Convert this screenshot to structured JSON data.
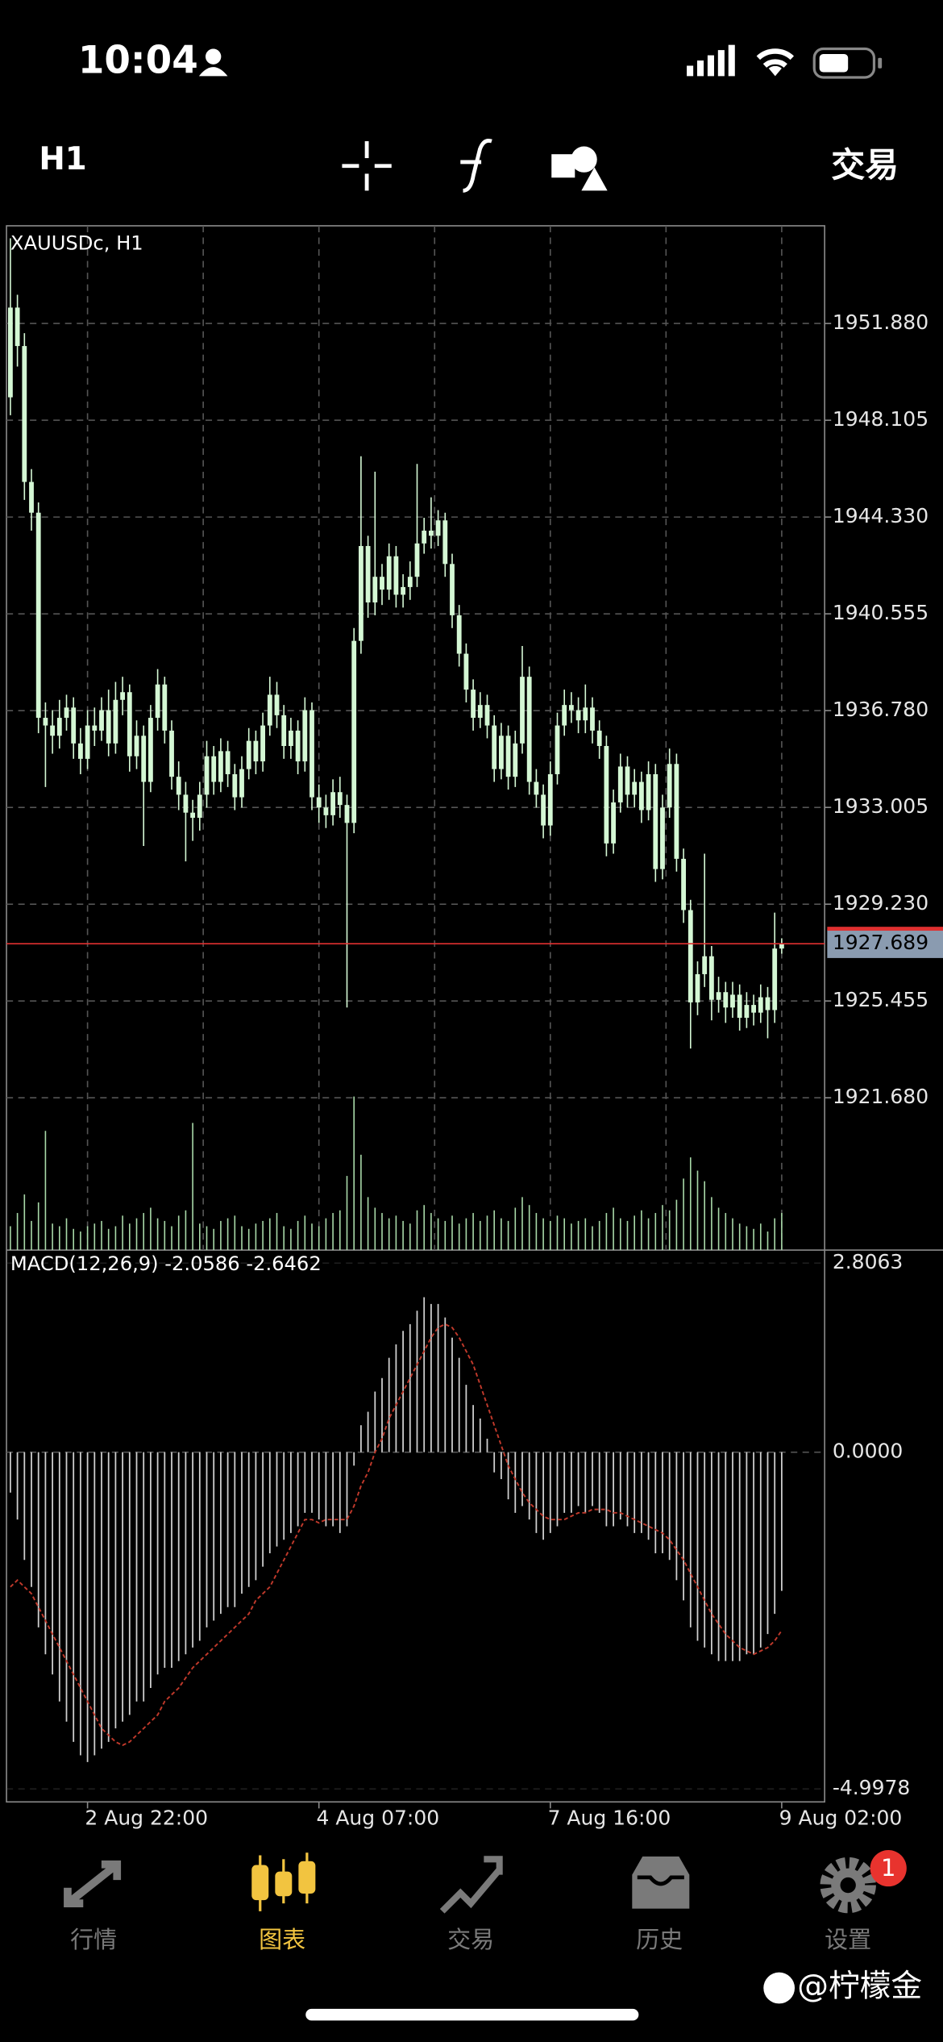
{
  "status_bar": {
    "time": "10:04"
  },
  "toolbar": {
    "timeframe": "H1",
    "trade": "交易"
  },
  "chart_data": {
    "type": "candlestick",
    "symbol_label": "XAUUSDc, H1",
    "color": "#d4f7d4",
    "grid": true,
    "categories": [
      null,
      null,
      null,
      null,
      null,
      null,
      null,
      null,
      null,
      null,
      null,
      "2 Aug 22:00",
      null,
      null,
      null,
      null,
      null,
      null,
      null,
      null,
      null,
      null,
      null,
      null,
      null,
      null,
      null,
      null,
      null,
      null,
      null,
      null,
      null,
      null,
      null,
      null,
      null,
      null,
      null,
      null,
      null,
      null,
      null,
      null,
      "4 Aug 07:00",
      null,
      null,
      null,
      null,
      null,
      null,
      null,
      null,
      null,
      null,
      null,
      null,
      null,
      null,
      null,
      null,
      null,
      null,
      null,
      null,
      null,
      null,
      null,
      null,
      null,
      null,
      null,
      null,
      null,
      null,
      null,
      null,
      "7 Aug 16:00",
      null,
      null,
      null,
      null,
      null,
      null,
      null,
      null,
      null,
      null,
      null,
      null,
      null,
      null,
      null,
      null,
      null,
      null,
      null,
      null,
      null,
      null,
      null,
      null,
      null,
      null,
      null,
      null,
      null,
      null,
      null,
      null,
      "9 Aug 02:00"
    ],
    "candles": [
      [
        1949.0,
        1955.2,
        1948.3,
        1952.5
      ],
      [
        1952.5,
        1953.0,
        1950.2,
        1951.0
      ],
      [
        1951.0,
        1951.5,
        1945.0,
        1945.7
      ],
      [
        1945.7,
        1946.2,
        1943.8,
        1944.5
      ],
      [
        1944.5,
        1944.9,
        1935.9,
        1936.5
      ],
      [
        1936.5,
        1937.1,
        1933.8,
        1936.2
      ],
      [
        1936.2,
        1936.8,
        1935.1,
        1935.8
      ],
      [
        1935.8,
        1937.2,
        1935.3,
        1936.5
      ],
      [
        1936.5,
        1937.4,
        1936.0,
        1936.9
      ],
      [
        1936.9,
        1937.3,
        1934.9,
        1935.5
      ],
      [
        1935.5,
        1936.1,
        1934.3,
        1934.9
      ],
      [
        1934.9,
        1936.8,
        1934.5,
        1936.2
      ],
      [
        1936.2,
        1936.9,
        1935.4,
        1936.0
      ],
      [
        1936.0,
        1937.3,
        1935.6,
        1936.8
      ],
      [
        1936.8,
        1937.6,
        1935.0,
        1935.5
      ],
      [
        1935.5,
        1937.9,
        1935.1,
        1937.2
      ],
      [
        1937.2,
        1938.1,
        1936.6,
        1937.5
      ],
      [
        1937.5,
        1937.8,
        1934.4,
        1935.0
      ],
      [
        1935.0,
        1936.4,
        1934.5,
        1935.8
      ],
      [
        1935.8,
        1936.2,
        1931.5,
        1934.0
      ],
      [
        1934.0,
        1937.0,
        1933.6,
        1936.5
      ],
      [
        1936.5,
        1938.4,
        1936.0,
        1937.8
      ],
      [
        1937.8,
        1938.1,
        1935.5,
        1936.0
      ],
      [
        1936.0,
        1936.4,
        1933.7,
        1934.2
      ],
      [
        1934.2,
        1934.8,
        1932.9,
        1933.5
      ],
      [
        1933.5,
        1934.0,
        1930.9,
        1932.8
      ],
      [
        1932.8,
        1933.3,
        1931.7,
        1932.6
      ],
      [
        1932.6,
        1934.0,
        1932.1,
        1933.5
      ],
      [
        1933.5,
        1935.6,
        1933.0,
        1935.0
      ],
      [
        1935.0,
        1935.4,
        1933.5,
        1934.0
      ],
      [
        1934.0,
        1935.7,
        1933.6,
        1935.2
      ],
      [
        1935.2,
        1935.6,
        1933.8,
        1934.3
      ],
      [
        1934.3,
        1934.7,
        1932.9,
        1933.4
      ],
      [
        1933.4,
        1935.0,
        1933.0,
        1934.5
      ],
      [
        1934.5,
        1936.1,
        1934.1,
        1935.6
      ],
      [
        1935.6,
        1936.0,
        1934.3,
        1934.8
      ],
      [
        1934.8,
        1936.7,
        1934.4,
        1936.2
      ],
      [
        1936.2,
        1938.1,
        1935.8,
        1937.4
      ],
      [
        1937.4,
        1937.9,
        1936.1,
        1936.6
      ],
      [
        1936.6,
        1937.0,
        1934.9,
        1935.4
      ],
      [
        1935.4,
        1936.5,
        1934.9,
        1936.0
      ],
      [
        1936.0,
        1936.4,
        1934.3,
        1934.8
      ],
      [
        1934.8,
        1937.3,
        1934.4,
        1936.8
      ],
      [
        1936.8,
        1937.1,
        1932.9,
        1933.4
      ],
      [
        1933.4,
        1933.9,
        1932.4,
        1933.0
      ],
      [
        1933.0,
        1933.5,
        1932.2,
        1932.7
      ],
      [
        1932.7,
        1934.1,
        1932.3,
        1933.6
      ],
      [
        1933.6,
        1934.2,
        1932.6,
        1933.1
      ],
      [
        1933.1,
        1933.5,
        1925.2,
        1932.4
      ],
      [
        1932.4,
        1940.0,
        1932.0,
        1939.5
      ],
      [
        1939.5,
        1946.7,
        1939.0,
        1943.2
      ],
      [
        1943.2,
        1943.6,
        1940.4,
        1941.0
      ],
      [
        1941.0,
        1946.1,
        1940.5,
        1942.0
      ],
      [
        1942.0,
        1942.5,
        1940.9,
        1941.5
      ],
      [
        1941.5,
        1943.3,
        1941.1,
        1942.8
      ],
      [
        1942.8,
        1943.2,
        1940.8,
        1941.3
      ],
      [
        1941.3,
        1942.1,
        1940.8,
        1941.6
      ],
      [
        1941.6,
        1942.6,
        1941.1,
        1942.0
      ],
      [
        1942.0,
        1946.4,
        1941.6,
        1943.3
      ],
      [
        1943.3,
        1944.3,
        1942.9,
        1943.8
      ],
      [
        1943.8,
        1945.1,
        1943.1,
        1943.6
      ],
      [
        1943.6,
        1944.6,
        1943.2,
        1944.2
      ],
      [
        1944.2,
        1944.5,
        1942.0,
        1942.5
      ],
      [
        1942.5,
        1942.9,
        1940.0,
        1940.5
      ],
      [
        1940.5,
        1940.9,
        1938.5,
        1939.0
      ],
      [
        1939.0,
        1939.4,
        1937.1,
        1937.6
      ],
      [
        1937.6,
        1938.0,
        1936.0,
        1936.5
      ],
      [
        1936.5,
        1937.5,
        1936.1,
        1937.0
      ],
      [
        1937.0,
        1937.4,
        1935.7,
        1936.2
      ],
      [
        1936.2,
        1936.6,
        1934.0,
        1934.5
      ],
      [
        1934.5,
        1936.3,
        1934.1,
        1935.8
      ],
      [
        1935.8,
        1936.2,
        1933.7,
        1934.2
      ],
      [
        1934.2,
        1936.0,
        1933.8,
        1935.5
      ],
      [
        1935.5,
        1939.3,
        1935.1,
        1938.1
      ],
      [
        1938.1,
        1938.5,
        1933.5,
        1934.0
      ],
      [
        1934.0,
        1934.5,
        1933.0,
        1933.5
      ],
      [
        1933.5,
        1933.9,
        1931.8,
        1932.3
      ],
      [
        1932.3,
        1934.8,
        1931.9,
        1934.3
      ],
      [
        1934.3,
        1936.7,
        1933.9,
        1936.2
      ],
      [
        1936.2,
        1937.6,
        1935.8,
        1937.0
      ],
      [
        1937.0,
        1937.5,
        1936.3,
        1936.8
      ],
      [
        1936.8,
        1937.3,
        1935.9,
        1936.4
      ],
      [
        1936.4,
        1937.8,
        1935.9,
        1936.9
      ],
      [
        1936.9,
        1937.3,
        1935.5,
        1936.0
      ],
      [
        1936.0,
        1936.4,
        1934.9,
        1935.4
      ],
      [
        1935.4,
        1935.8,
        1931.1,
        1931.6
      ],
      [
        1931.6,
        1933.7,
        1931.2,
        1933.2
      ],
      [
        1933.2,
        1935.1,
        1932.8,
        1934.6
      ],
      [
        1934.6,
        1935.0,
        1933.0,
        1933.5
      ],
      [
        1933.5,
        1934.5,
        1933.0,
        1934.0
      ],
      [
        1934.0,
        1934.4,
        1932.4,
        1932.9
      ],
      [
        1932.9,
        1934.8,
        1932.5,
        1934.3
      ],
      [
        1934.3,
        1934.7,
        1930.1,
        1930.6
      ],
      [
        1930.6,
        1933.5,
        1930.2,
        1933.0
      ],
      [
        1933.0,
        1935.3,
        1932.6,
        1934.7
      ],
      [
        1934.7,
        1935.1,
        1930.5,
        1931.0
      ],
      [
        1931.0,
        1931.4,
        1928.5,
        1929.0
      ],
      [
        1929.0,
        1929.4,
        1923.6,
        1925.4
      ],
      [
        1925.4,
        1927.0,
        1924.9,
        1926.5
      ],
      [
        1926.5,
        1931.2,
        1926.0,
        1927.2
      ],
      [
        1927.2,
        1927.6,
        1924.7,
        1925.5
      ],
      [
        1925.5,
        1926.4,
        1925.0,
        1925.8
      ],
      [
        1925.8,
        1926.2,
        1924.6,
        1925.2
      ],
      [
        1925.2,
        1926.2,
        1924.8,
        1925.7
      ],
      [
        1925.7,
        1926.1,
        1924.3,
        1924.8
      ],
      [
        1924.8,
        1925.8,
        1924.4,
        1925.3
      ],
      [
        1925.3,
        1925.7,
        1924.5,
        1925.0
      ],
      [
        1925.0,
        1926.1,
        1924.6,
        1925.6
      ],
      [
        1925.6,
        1926.0,
        1924.0,
        1925.1
      ],
      [
        1925.1,
        1928.9,
        1924.6,
        1927.5
      ],
      [
        1927.5,
        1927.9,
        1927.3,
        1927.69
      ]
    ],
    "ylim": [
      1915.74,
      1955.69
    ],
    "yticks": [
      {
        "value": 1951.88,
        "label": "1951.880"
      },
      1948.105,
      {
        "value": 1944.33,
        "label": "1944.330"
      },
      1940.555,
      {
        "value": 1936.78,
        "label": "1936.780"
      },
      1933.005,
      {
        "value": 1929.23,
        "label": "1929.230"
      },
      1925.455,
      {
        "value": 1921.68,
        "label": "1921.680"
      }
    ],
    "current_price": {
      "value": 1927.689,
      "label": "1927.689",
      "color": "#e03030",
      "label_background": "#8a9bb0"
    },
    "volume": [
      900,
      1400,
      2100,
      1100,
      1800,
      4500,
      1000,
      900,
      1200,
      800,
      700,
      900,
      1000,
      1100,
      800,
      900,
      1300,
      1000,
      1200,
      1400,
      1600,
      1200,
      1100,
      900,
      1300,
      1500,
      4800,
      1000,
      900,
      800,
      1100,
      1200,
      1300,
      900,
      800,
      1000,
      1100,
      1200,
      1400,
      900,
      800,
      1100,
      1300,
      1000,
      900,
      1200,
      1400,
      1500,
      2800,
      5800,
      3600,
      2000,
      1600,
      1400,
      1200,
      1300,
      1100,
      1000,
      1500,
      1700,
      1400,
      1200,
      1100,
      1300,
      1000,
      1200,
      1400,
      1100,
      1300,
      1500,
      1200,
      1100,
      1600,
      2000,
      1700,
      1400,
      1200,
      1100,
      1300,
      1200,
      1000,
      1100,
      1200,
      900,
      1100,
      1400,
      1600,
      1200,
      1100,
      1300,
      1500,
      1200,
      1400,
      1700,
      1500,
      1900,
      2700,
      3500,
      3000,
      2600,
      2000,
      1600,
      1400,
      1200,
      1000,
      900,
      800,
      1000,
      700,
      1200,
      1400
    ],
    "volume_color": "#a8d8a8",
    "macd": {
      "label": "MACD(12,26,9) -2.0586 -2.6462",
      "histogram_color": "#cfcfcf",
      "signal_color": "#c0392b",
      "ylim": [
        -5.191,
        3.0
      ],
      "yticks": [
        2.8063,
        {
          "value": 0,
          "label": "0.0000"
        },
        -4.9978
      ],
      "histogram": [
        -0.6,
        -1.0,
        -1.6,
        -2.0,
        -2.6,
        -3.0,
        -3.3,
        -3.7,
        -4.0,
        -4.3,
        -4.5,
        -4.6,
        -4.5,
        -4.4,
        -4.3,
        -4.1,
        -4.0,
        -3.9,
        -3.7,
        -3.7,
        -3.5,
        -3.3,
        -3.2,
        -3.2,
        -3.1,
        -3.0,
        -2.9,
        -2.8,
        -2.6,
        -2.5,
        -2.4,
        -2.3,
        -2.3,
        -2.1,
        -2.0,
        -1.9,
        -1.7,
        -1.5,
        -1.4,
        -1.3,
        -1.2,
        -1.1,
        -0.9,
        -0.9,
        -1.0,
        -1.1,
        -1.1,
        -1.2,
        -1.1,
        -0.2,
        0.4,
        0.6,
        0.9,
        1.1,
        1.4,
        1.6,
        1.8,
        1.9,
        2.1,
        2.3,
        2.2,
        2.2,
        2.0,
        1.7,
        1.4,
        1.0,
        0.7,
        0.5,
        0.2,
        -0.3,
        -0.4,
        -0.7,
        -0.9,
        -0.8,
        -1.0,
        -1.2,
        -1.3,
        -1.2,
        -1.1,
        -0.9,
        -0.9,
        -0.8,
        -0.9,
        -0.8,
        -0.9,
        -1.1,
        -1.1,
        -1.0,
        -1.1,
        -1.2,
        -1.2,
        -1.3,
        -1.5,
        -1.5,
        -1.6,
        -1.9,
        -2.2,
        -2.6,
        -2.8,
        -2.9,
        -3.0,
        -3.1,
        -3.1,
        -3.1,
        -3.1,
        -3.0,
        -3.0,
        -2.9,
        -2.7,
        -2.4,
        -2.0586
      ],
      "signal": [
        -2.0,
        -1.9,
        -2.0,
        -2.1,
        -2.3,
        -2.5,
        -2.7,
        -2.9,
        -3.1,
        -3.3,
        -3.5,
        -3.7,
        -3.9,
        -4.1,
        -4.2,
        -4.3,
        -4.35,
        -4.3,
        -4.2,
        -4.1,
        -4.0,
        -3.9,
        -3.7,
        -3.6,
        -3.5,
        -3.35,
        -3.2,
        -3.1,
        -3.0,
        -2.9,
        -2.8,
        -2.7,
        -2.6,
        -2.5,
        -2.4,
        -2.2,
        -2.1,
        -2.0,
        -1.8,
        -1.6,
        -1.4,
        -1.2,
        -1.0,
        -1.0,
        -1.05,
        -1.0,
        -1.0,
        -1.0,
        -1.0,
        -0.8,
        -0.5,
        -0.3,
        0.0,
        0.2,
        0.5,
        0.7,
        0.9,
        1.1,
        1.3,
        1.5,
        1.7,
        1.85,
        1.9,
        1.85,
        1.7,
        1.5,
        1.3,
        1.0,
        0.7,
        0.4,
        0.1,
        -0.2,
        -0.4,
        -0.6,
        -0.75,
        -0.85,
        -0.95,
        -1.0,
        -1.0,
        -1.0,
        -0.95,
        -0.9,
        -0.9,
        -0.85,
        -0.85,
        -0.85,
        -0.9,
        -0.9,
        -0.95,
        -1.0,
        -1.05,
        -1.1,
        -1.15,
        -1.2,
        -1.3,
        -1.45,
        -1.6,
        -1.8,
        -2.0,
        -2.2,
        -2.4,
        -2.55,
        -2.7,
        -2.8,
        -2.9,
        -2.95,
        -3.0,
        -2.95,
        -2.9,
        -2.8,
        -2.6462
      ]
    }
  },
  "tab_bar": {
    "tabs": [
      "行情",
      "图表",
      "交易",
      "历史",
      "设置"
    ],
    "active": 1,
    "active_color": "#f2c440",
    "color": "#7a7a7a",
    "badge": 1
  },
  "watermark": "@柠檬金"
}
